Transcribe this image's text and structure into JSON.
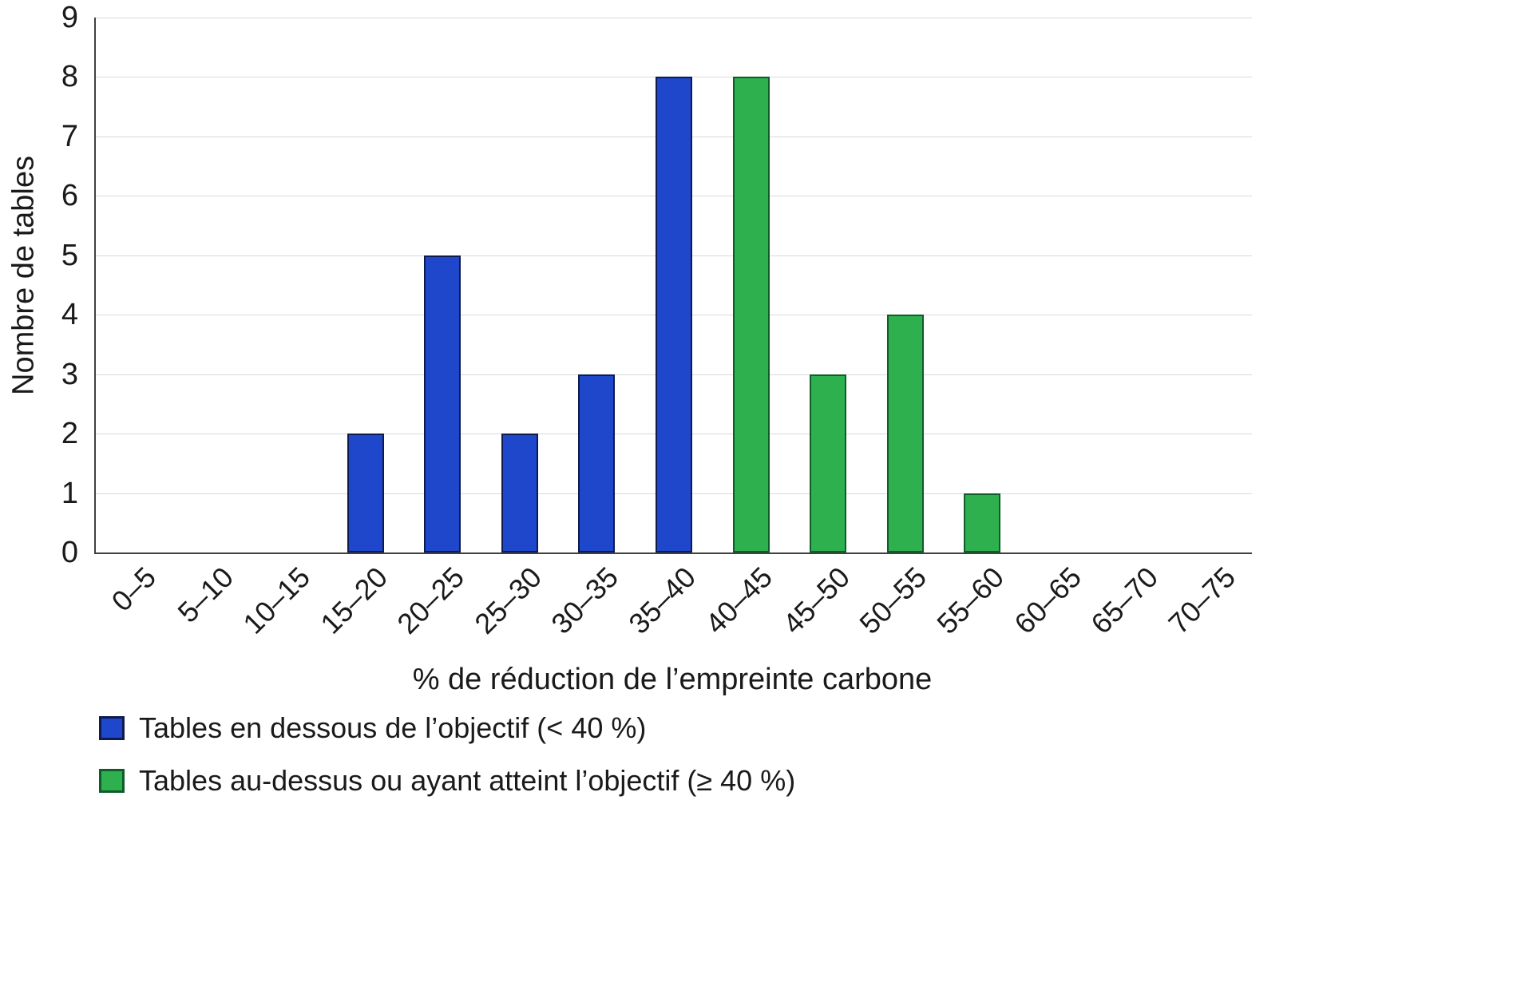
{
  "chart_data": {
    "type": "bar",
    "categories": [
      "0–5",
      "5–10",
      "10–15",
      "15–20",
      "20–25",
      "25–30",
      "30–35",
      "35–40",
      "40–45",
      "45–50",
      "50–55",
      "55–60",
      "60–65",
      "65–70",
      "70–75"
    ],
    "series": [
      {
        "name": "Tables en dessous de l’objectif (< 40 %)",
        "color": "#1f47cc",
        "border_color": "#101b4d",
        "values": [
          0,
          0,
          0,
          2,
          5,
          2,
          3,
          8,
          0,
          0,
          0,
          0,
          0,
          0,
          0
        ]
      },
      {
        "name": "Tables au-dessus ou ayant atteint l’objectif (≥ 40 %)",
        "color": "#2eb04e",
        "border_color": "#0e5c28",
        "values": [
          0,
          0,
          0,
          0,
          0,
          0,
          0,
          0,
          8,
          3,
          4,
          1,
          0,
          0,
          0
        ]
      }
    ],
    "xlabel": "% de réduction de l’empreinte carbone",
    "ylabel": "Nombre de tables",
    "ylim": [
      0,
      9
    ],
    "ytick_step": 1,
    "grid": "horizontal",
    "grid_color": "#d9d9d9",
    "axis_color": "#404040",
    "legend_position": "bottom-left"
  }
}
